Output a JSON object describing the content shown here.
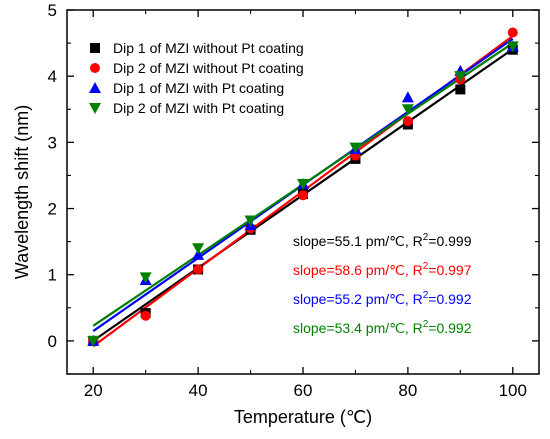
{
  "chart_data": {
    "type": "scatter",
    "xlabel": "Temperature (℃)",
    "ylabel": "Wavelength shift (nm)",
    "xlim": [
      15,
      105
    ],
    "ylim": [
      -0.5,
      5
    ],
    "x_ticks": [
      20,
      40,
      60,
      80,
      100
    ],
    "x_minor_ticks": [
      30,
      50,
      70,
      90
    ],
    "y_ticks": [
      0,
      1,
      2,
      3,
      4,
      5
    ],
    "y_minor_ticks": [
      -0.5,
      0.5,
      1.5,
      2.5,
      3.5,
      4.5
    ],
    "legend_position": "top-left",
    "grid": false,
    "x": [
      20,
      30,
      40,
      50,
      60,
      70,
      80,
      90,
      100
    ],
    "series": [
      {
        "name": "Dip 1 of MZI without Pt coating",
        "marker": "square",
        "color": "#000000",
        "values": [
          0.0,
          0.42,
          1.08,
          1.68,
          2.22,
          2.75,
          3.27,
          3.8,
          4.4
        ],
        "fit": {
          "slope": 0.0551,
          "intercept": -1.1,
          "x_range": [
            20,
            100
          ]
        }
      },
      {
        "name": "Dip 2 of MZI without Pt coating",
        "marker": "circle",
        "color": "#ff0000",
        "values": [
          0.0,
          0.38,
          1.08,
          1.7,
          2.2,
          2.8,
          3.32,
          3.95,
          4.66
        ],
        "fit": {
          "slope": 0.0586,
          "intercept": -1.252,
          "x_range": [
            20,
            100
          ]
        }
      },
      {
        "name": "Dip 1 of MZI with Pt coating",
        "marker": "triangle-up",
        "color": "#0000ff",
        "values": [
          0.0,
          0.92,
          1.3,
          1.75,
          2.37,
          2.9,
          3.68,
          4.08,
          4.45
        ],
        "fit": {
          "slope": 0.0552,
          "intercept": -0.955,
          "x_range": [
            20,
            100
          ]
        }
      },
      {
        "name": "Dip 2 of MZI with Pt coating",
        "marker": "triangle-down",
        "color": "#008000",
        "values": [
          0.0,
          0.96,
          1.4,
          1.82,
          2.37,
          2.92,
          3.5,
          4.0,
          4.45
        ],
        "fit": {
          "slope": 0.0534,
          "intercept": -0.84,
          "x_range": [
            20,
            100
          ]
        }
      }
    ],
    "annotations": [
      {
        "text": "slope=55.1 pm/℃, R",
        "sup": "2",
        "tail": "=0.999",
        "color": "#000000"
      },
      {
        "text": "slope=58.6 pm/℃, R",
        "sup": "2",
        "tail": "=0.997",
        "color": "#ff0000"
      },
      {
        "text": "slope=55.2 pm/℃, R",
        "sup": "2",
        "tail": "=0.992",
        "color": "#0000ff"
      },
      {
        "text": "slope=53.4 pm/℃, R",
        "sup": "2",
        "tail": "=0.992",
        "color": "#008000"
      }
    ]
  }
}
